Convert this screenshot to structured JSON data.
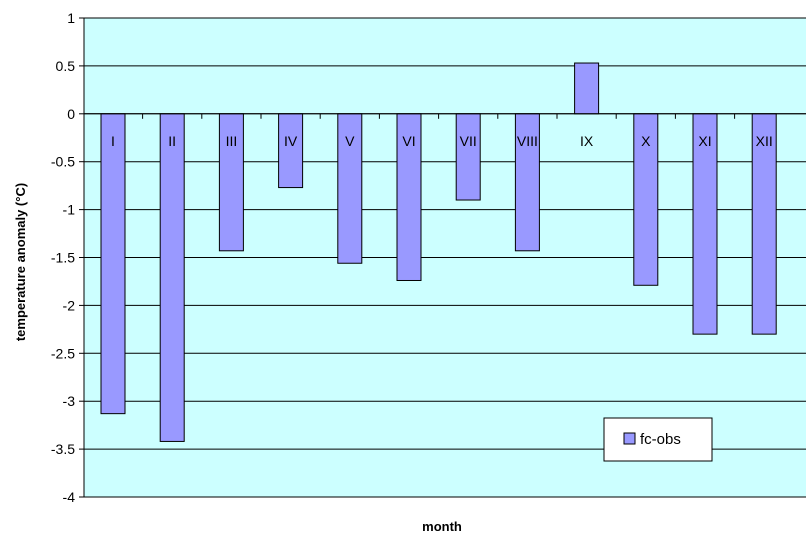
{
  "chart_data": {
    "type": "bar",
    "xlabel": "month",
    "ylabel": "temperature anomaly (°C)",
    "ylim": [
      -4,
      1
    ],
    "y_ticks": [
      1,
      0.5,
      0,
      -0.5,
      -1,
      -1.5,
      -2,
      -2.5,
      -3,
      -3.5,
      -4
    ],
    "categories": [
      "I",
      "II",
      "III",
      "IV",
      "V",
      "VI",
      "VII",
      "VIII",
      "IX",
      "X",
      "XI",
      "XII"
    ],
    "series": [
      {
        "name": "fc-obs",
        "values": [
          -3.13,
          -3.42,
          -1.43,
          -0.77,
          -1.56,
          -1.74,
          -0.9,
          -1.43,
          0.53,
          -1.79,
          -2.3,
          -2.3
        ]
      }
    ],
    "legend": "bottom-right",
    "grid": true,
    "colors": {
      "plot_background": "#ccffff",
      "bar_fill": "#9999ff",
      "bar_stroke": "#000000",
      "gridline": "#000000"
    }
  }
}
